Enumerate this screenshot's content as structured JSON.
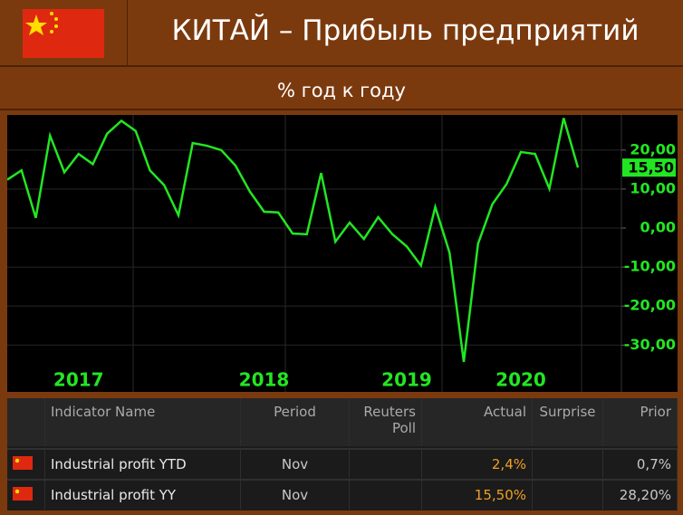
{
  "header": {
    "title": "КИТАЙ – Прибыль предприятий",
    "subtitle": "% год к году"
  },
  "chart_data": {
    "type": "line",
    "categories": [
      null,
      null,
      null,
      null,
      null,
      "2017",
      null,
      null,
      null,
      null,
      null,
      null,
      null,
      null,
      null,
      null,
      null,
      null,
      "2018",
      null,
      null,
      null,
      null,
      null,
      null,
      null,
      null,
      null,
      "2019",
      null,
      null,
      null,
      null,
      null,
      null,
      null,
      "2020",
      null,
      null,
      null,
      null
    ],
    "series": [
      {
        "color": "#22e622",
        "values": [
          12.4,
          14.8,
          2.6,
          23.7,
          14.3,
          19,
          16.4,
          24.2,
          27.5,
          24.9,
          14.8,
          11,
          3.3,
          21.8,
          21.1,
          20,
          16,
          9.4,
          4.2,
          4,
          -1.4,
          -1.6,
          14.1,
          -3.5,
          1.4,
          -2.8,
          2.8,
          -1.6,
          -4.7,
          -9.6,
          5.4,
          -6.3,
          -34.3,
          -4,
          6.1,
          11.3,
          19.5,
          19,
          10.1,
          28.2,
          15.5
        ]
      }
    ],
    "ylim": [
      -42,
      29
    ],
    "yticks": [
      {
        "value": 20,
        "label": "20,00"
      },
      {
        "value": 10,
        "label": "10,00"
      },
      {
        "value": 0,
        "label": "0,00"
      },
      {
        "value": -10,
        "label": "-10,00"
      },
      {
        "value": -20,
        "label": "-20,00"
      },
      {
        "value": -30,
        "label": "-30,00"
      }
    ],
    "current": {
      "value": 15.5,
      "label": "15,50"
    },
    "grid": true
  },
  "table": {
    "columns": [
      "Indicator Name",
      "Period",
      "Reuters Poll",
      "Actual",
      "Surprise",
      "Prior"
    ],
    "rows": [
      [
        "Industrial profit YTD",
        "Nov",
        null,
        "2,4%",
        null,
        "0,7%"
      ],
      [
        "Industrial profit YY",
        "Nov",
        null,
        "15,50%",
        null,
        "28,20%"
      ]
    ]
  }
}
